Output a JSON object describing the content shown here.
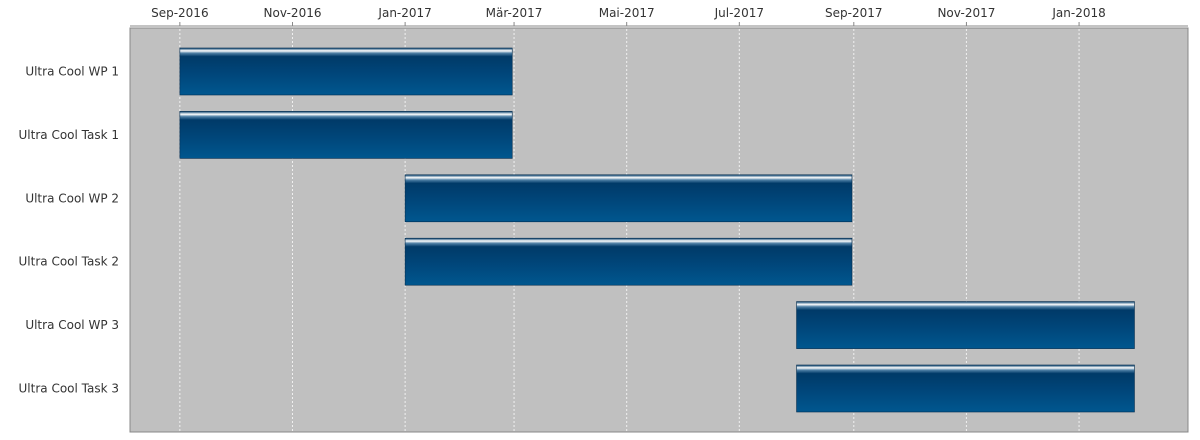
{
  "chart_data": {
    "type": "gantt",
    "title": "",
    "xlabel": "",
    "ylabel": "",
    "x_axis": {
      "ticks": [
        {
          "label": "Sep-2016",
          "date": "2016-09-01"
        },
        {
          "label": "Nov-2016",
          "date": "2016-11-01"
        },
        {
          "label": "Jan-2017",
          "date": "2017-01-01"
        },
        {
          "label": "Mär-2017",
          "date": "2017-03-01"
        },
        {
          "label": "Mai-2017",
          "date": "2017-05-01"
        },
        {
          "label": "Jul-2017",
          "date": "2017-07-01"
        },
        {
          "label": "Sep-2017",
          "date": "2017-09-01"
        },
        {
          "label": "Nov-2017",
          "date": "2017-11-01"
        },
        {
          "label": "Jan-2018",
          "date": "2018-01-01"
        }
      ],
      "range": [
        "2016-08-05",
        "2018-03-01"
      ],
      "position": "top"
    },
    "grid": true,
    "legend": "none",
    "tasks": [
      {
        "name": "Ultra Cool WP 1",
        "start": "2016-09-01",
        "end": "2017-02-28"
      },
      {
        "name": "Ultra Cool Task 1",
        "start": "2016-09-01",
        "end": "2017-02-28"
      },
      {
        "name": "Ultra Cool WP 2",
        "start": "2017-01-01",
        "end": "2017-08-31"
      },
      {
        "name": "Ultra Cool Task 2",
        "start": "2017-01-01",
        "end": "2017-08-31"
      },
      {
        "name": "Ultra Cool WP 3",
        "start": "2017-08-01",
        "end": "2018-01-31"
      },
      {
        "name": "Ultra Cool Task 3",
        "start": "2017-08-01",
        "end": "2018-01-31"
      }
    ],
    "colors": {
      "plot_background": "#c0c0c0",
      "bar_dark": "#003a68",
      "bar_mid": "#00578f",
      "bar_highlight": "#ffffff",
      "grid_line": "#f0f0f0",
      "axis_line": "#888888"
    }
  }
}
